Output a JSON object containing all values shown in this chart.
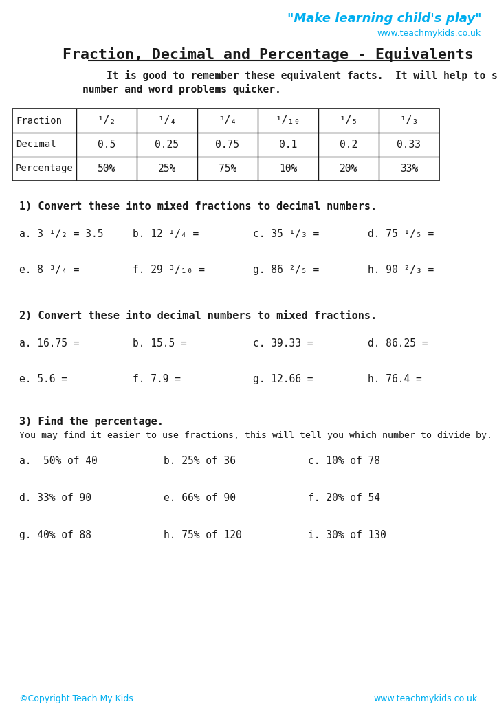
{
  "title": "Fraction, Decimal and Percentage - Equivalents",
  "tagline": "\"Make learning child's play\"",
  "website": "www.teachmykids.co.uk",
  "intro_line1": "It is good to remember these equivalent facts.  It will help to solve some",
  "intro_line2": "number and word problems quicker.",
  "table_row0_label": "Fraction",
  "table_row0": [
    "¹/₂",
    "¹/₄",
    "³/₄",
    "¹/₁₀",
    "¹/₅",
    "¹/₃"
  ],
  "table_row1_label": "Decimal",
  "table_row1": [
    "0.5",
    "0.25",
    "0.75",
    "0.1",
    "0.2",
    "0.33"
  ],
  "table_row2_label": "Percentage",
  "table_row2": [
    "50%",
    "25%",
    "75%",
    "10%",
    "20%",
    "33%"
  ],
  "section1_title": "1) Convert these into mixed fractions to decimal numbers.",
  "section1_items": [
    "a. 3 ¹/₂ = 3.5",
    "b. 12 ¹/₄ =",
    "c. 35 ¹/₃ =",
    "d. 75 ¹/₅ =",
    "e. 8 ³/₄ =",
    "f. 29 ³/₁₀ =",
    "g. 86 ²/₅ =",
    "h. 90 ²/₃ ="
  ],
  "section2_title": "2) Convert these into decimal numbers to mixed fractions.",
  "section2_items": [
    "a. 16.75 =",
    "b. 15.5 =",
    "c. 39.33 =",
    "d. 86.25 =",
    "e. 5.6 =",
    "f. 7.9 =",
    "g. 12.66 =",
    "h. 76.4 ="
  ],
  "section3_title": "3) Find the percentage.",
  "section3_subtitle": "You may find it easier to use fractions, this will tell you which number to divide by.",
  "section3_items": [
    "a.  50% of 40",
    "b. 25% of 36",
    "c. 10% of 78",
    "d. 33% of 90",
    "e. 66% of 90",
    "f. 20% of 54",
    "g. 40% of 88",
    "h. 75% of 120",
    "i. 30% of 130"
  ],
  "copyright": "©Copyright Teach My Kids",
  "footer_website": "www.teachmykids.co.uk",
  "cyan_color": "#00AEEF",
  "dark_color": "#1a1a1a",
  "bg_color": "#ffffff"
}
